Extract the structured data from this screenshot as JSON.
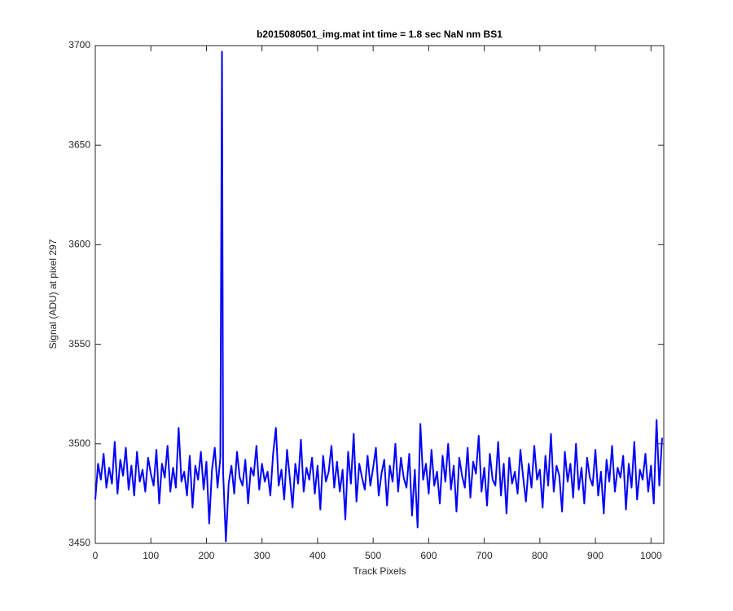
{
  "chart_data": {
    "type": "line",
    "title": "b2015080501_img.mat int time = 1.8 sec  NaN nm BS1",
    "x_label": "Track Pixels",
    "y_label": "Signal (ADU) at pixel 297",
    "xlim": [
      0,
      1023
    ],
    "xticks": [
      0,
      100,
      200,
      300,
      400,
      500,
      600,
      700,
      800,
      900,
      1000
    ],
    "ylim": [
      3450,
      3700
    ],
    "yticks": [
      3450,
      3500,
      3550,
      3600,
      3650,
      3700
    ],
    "grid": false,
    "x": [
      0,
      5,
      10,
      15,
      20,
      25,
      30,
      35,
      40,
      45,
      50,
      55,
      60,
      65,
      70,
      75,
      80,
      85,
      90,
      95,
      100,
      105,
      110,
      115,
      120,
      125,
      130,
      135,
      140,
      145,
      150,
      155,
      160,
      165,
      170,
      175,
      180,
      185,
      190,
      195,
      200,
      205,
      210,
      215,
      220,
      225,
      228,
      230,
      235,
      240,
      245,
      250,
      255,
      260,
      265,
      270,
      275,
      280,
      285,
      290,
      295,
      300,
      305,
      310,
      315,
      320,
      325,
      330,
      335,
      340,
      345,
      350,
      355,
      360,
      365,
      370,
      375,
      380,
      385,
      390,
      395,
      400,
      405,
      410,
      415,
      420,
      425,
      430,
      435,
      440,
      445,
      450,
      455,
      460,
      465,
      470,
      475,
      480,
      485,
      490,
      495,
      500,
      505,
      510,
      515,
      520,
      525,
      530,
      535,
      540,
      545,
      550,
      555,
      560,
      565,
      570,
      575,
      580,
      585,
      590,
      595,
      600,
      605,
      610,
      615,
      620,
      625,
      630,
      635,
      640,
      645,
      650,
      655,
      660,
      665,
      670,
      675,
      680,
      685,
      690,
      695,
      700,
      705,
      710,
      715,
      720,
      725,
      730,
      735,
      740,
      745,
      750,
      755,
      760,
      765,
      770,
      775,
      780,
      785,
      790,
      795,
      800,
      805,
      810,
      815,
      820,
      825,
      830,
      835,
      840,
      845,
      850,
      855,
      860,
      865,
      870,
      875,
      880,
      885,
      890,
      895,
      900,
      905,
      910,
      915,
      920,
      925,
      930,
      935,
      940,
      945,
      950,
      955,
      960,
      965,
      970,
      975,
      980,
      985,
      990,
      995,
      1000,
      1005,
      1010,
      1015,
      1020
    ],
    "series": [
      {
        "color": "#0000ff",
        "values": [
          3472,
          3490,
          3482,
          3495,
          3478,
          3488,
          3480,
          3501,
          3475,
          3492,
          3484,
          3498,
          3477,
          3489,
          3474,
          3496,
          3481,
          3487,
          3476,
          3493,
          3485,
          3479,
          3497,
          3470,
          3490,
          3483,
          3499,
          3476,
          3488,
          3478,
          3508,
          3481,
          3486,
          3474,
          3494,
          3468,
          3489,
          3482,
          3496,
          3477,
          3491,
          3460,
          3487,
          3498,
          3478,
          3493,
          3697,
          3486,
          3451,
          3480,
          3489,
          3475,
          3496,
          3483,
          3479,
          3492,
          3470,
          3488,
          3484,
          3499,
          3477,
          3490,
          3481,
          3486,
          3474,
          3495,
          3508,
          3479,
          3487,
          3472,
          3497,
          3483,
          3468,
          3490,
          3480,
          3502,
          3476,
          3488,
          3482,
          3493,
          3475,
          3489,
          3467,
          3494,
          3481,
          3486,
          3499,
          3478,
          3491,
          3476,
          3487,
          3462,
          3496,
          3480,
          3505,
          3471,
          3490,
          3483,
          3477,
          3494,
          3479,
          3488,
          3498,
          3474,
          3485,
          3492,
          3469,
          3489,
          3481,
          3500,
          3476,
          3493,
          3483,
          3478,
          3495,
          3464,
          3487,
          3458,
          3510,
          3482,
          3490,
          3475,
          3497,
          3479,
          3486,
          3470,
          3494,
          3481,
          3500,
          3477,
          3489,
          3466,
          3493,
          3484,
          3478,
          3498,
          3473,
          3491,
          3485,
          3504,
          3476,
          3488,
          3469,
          3495,
          3482,
          3479,
          3501,
          3474,
          3490,
          3465,
          3493,
          3480,
          3486,
          3475,
          3497,
          3483,
          3471,
          3490,
          3478,
          3499,
          3482,
          3487,
          3468,
          3494,
          3479,
          3505,
          3476,
          3489,
          3484,
          3466,
          3496,
          3481,
          3490,
          3473,
          3500,
          3477,
          3488,
          3470,
          3493,
          3483,
          3479,
          3497,
          3474,
          3486,
          3465,
          3492,
          3481,
          3499,
          3476,
          3488,
          3483,
          3494,
          3467,
          3490,
          3478,
          3501,
          3472,
          3487,
          3482,
          3495,
          3476,
          3489,
          3470,
          3512,
          3479,
          3503
        ]
      }
    ]
  }
}
